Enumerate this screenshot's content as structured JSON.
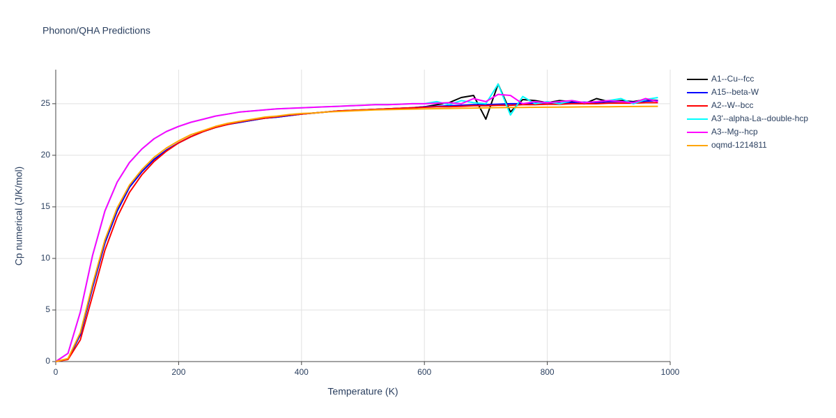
{
  "chart_data": {
    "type": "line",
    "title": "Phonon/QHA Predictions",
    "x_label": "Temperature (K)",
    "y_label": "Cp numerical (J/K/mol)",
    "x": [
      0,
      20,
      40,
      60,
      80,
      100,
      120,
      140,
      160,
      180,
      200,
      220,
      240,
      260,
      280,
      300,
      320,
      340,
      360,
      380,
      400,
      420,
      440,
      460,
      480,
      500,
      520,
      540,
      560,
      580,
      600,
      620,
      640,
      660,
      680,
      700,
      720,
      740,
      760,
      780,
      800,
      820,
      840,
      860,
      880,
      900,
      920,
      940,
      960,
      980
    ],
    "xlim": [
      0,
      1000
    ],
    "xticks": [
      0,
      200,
      400,
      600,
      800,
      1000
    ],
    "ylim": [
      0,
      28.3
    ],
    "yticks": [
      0,
      5,
      10,
      15,
      20,
      25
    ],
    "grid": true,
    "series": [
      {
        "name": "A1--Cu--fcc",
        "color": "#000000",
        "values": [
          0,
          0.25,
          2.6,
          7.2,
          11.5,
          14.6,
          16.9,
          18.4,
          19.6,
          20.5,
          21.2,
          21.8,
          22.3,
          22.7,
          23.0,
          23.2,
          23.4,
          23.6,
          23.7,
          23.85,
          24.0,
          24.1,
          24.2,
          24.3,
          24.35,
          24.4,
          24.45,
          24.5,
          24.55,
          24.6,
          24.7,
          24.9,
          25.1,
          25.6,
          25.8,
          23.5,
          26.9,
          24.2,
          25.4,
          25.3,
          25.1,
          25.3,
          25.2,
          25.0,
          25.5,
          25.2,
          25.3,
          25.2,
          25.4,
          25.3
        ]
      },
      {
        "name": "A15--beta-W",
        "color": "#0000ff",
        "values": [
          0,
          0.25,
          2.6,
          7.2,
          11.5,
          14.6,
          16.9,
          18.4,
          19.6,
          20.5,
          21.2,
          21.8,
          22.3,
          22.7,
          23.0,
          23.2,
          23.4,
          23.6,
          23.7,
          23.85,
          24.0,
          24.1,
          24.2,
          24.3,
          24.35,
          24.4,
          24.45,
          24.5,
          24.55,
          24.6,
          24.7,
          24.75,
          24.8,
          24.85,
          24.9,
          24.9,
          24.95,
          25.0,
          25.0,
          25.05,
          25.1,
          25.05,
          25.1,
          25.15,
          25.1,
          25.2,
          25.2,
          25.15,
          25.25,
          25.3
        ]
      },
      {
        "name": "A2--W--bcc",
        "color": "#ff0000",
        "values": [
          0,
          0.2,
          2.1,
          6.4,
          10.8,
          14.0,
          16.4,
          18.1,
          19.4,
          20.4,
          21.2,
          21.8,
          22.3,
          22.7,
          23.0,
          23.25,
          23.45,
          23.6,
          23.75,
          23.9,
          24.0,
          24.1,
          24.2,
          24.3,
          24.35,
          24.4,
          24.45,
          24.5,
          24.55,
          24.6,
          24.65,
          24.7,
          24.7,
          24.75,
          24.8,
          24.8,
          24.85,
          24.85,
          24.9,
          24.9,
          24.95,
          24.95,
          25.0,
          25.0,
          25.0,
          25.05,
          25.05,
          25.05,
          25.1,
          25.1
        ]
      },
      {
        "name": "A3'--alpha-La--double-hcp",
        "color": "#00ffff",
        "values": [
          0,
          0.8,
          4.8,
          10.3,
          14.6,
          17.4,
          19.3,
          20.6,
          21.6,
          22.3,
          22.8,
          23.2,
          23.5,
          23.8,
          24.0,
          24.2,
          24.3,
          24.4,
          24.5,
          24.55,
          24.6,
          24.65,
          24.7,
          24.75,
          24.8,
          24.85,
          24.9,
          24.9,
          24.95,
          25.0,
          25.0,
          25.2,
          24.9,
          25.3,
          25.1,
          25.0,
          26.9,
          23.9,
          25.7,
          25.0,
          25.2,
          25.0,
          25.3,
          25.1,
          25.2,
          25.3,
          25.5,
          25.0,
          25.4,
          25.6
        ]
      },
      {
        "name": "A3--Mg--hcp",
        "color": "#ff00ff",
        "values": [
          0,
          0.8,
          4.8,
          10.3,
          14.6,
          17.4,
          19.3,
          20.6,
          21.6,
          22.3,
          22.8,
          23.2,
          23.5,
          23.8,
          24.0,
          24.2,
          24.3,
          24.4,
          24.5,
          24.55,
          24.6,
          24.65,
          24.7,
          24.75,
          24.8,
          24.85,
          24.9,
          24.9,
          24.95,
          25.0,
          25.0,
          25.05,
          25.1,
          25.0,
          25.5,
          25.2,
          25.9,
          25.8,
          25.0,
          25.2,
          25.1,
          25.2,
          25.3,
          25.1,
          25.2,
          25.3,
          25.2,
          25.1,
          25.5,
          25.2
        ]
      },
      {
        "name": "oqmd-1214811",
        "color": "#ffa500",
        "values": [
          0,
          0.3,
          2.8,
          7.5,
          11.8,
          14.9,
          17.1,
          18.6,
          19.8,
          20.7,
          21.4,
          22.0,
          22.4,
          22.8,
          23.1,
          23.3,
          23.5,
          23.7,
          23.8,
          23.95,
          24.05,
          24.1,
          24.2,
          24.25,
          24.3,
          24.35,
          24.4,
          24.42,
          24.45,
          24.48,
          24.5,
          24.52,
          24.54,
          24.56,
          24.58,
          24.6,
          24.62,
          24.63,
          24.64,
          24.65,
          24.66,
          24.67,
          24.68,
          24.69,
          24.7,
          24.71,
          24.72,
          24.73,
          24.74,
          24.75
        ]
      }
    ]
  }
}
